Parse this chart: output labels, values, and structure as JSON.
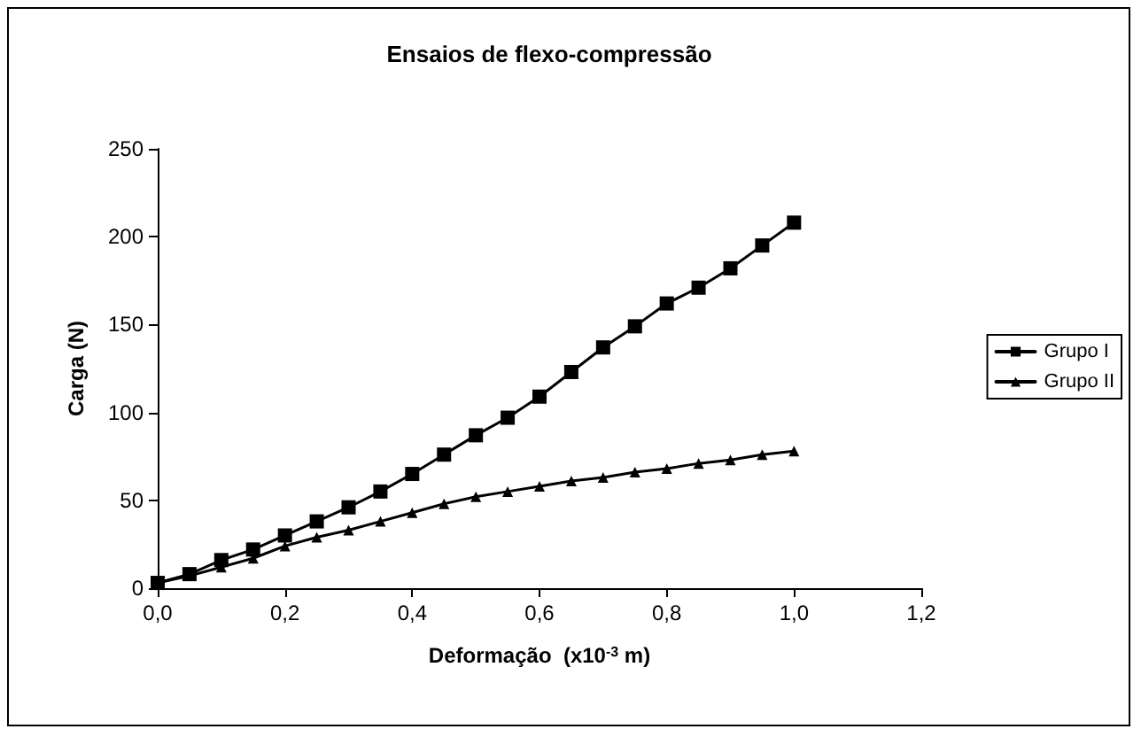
{
  "chart_data": {
    "type": "line",
    "title": "Ensaios de flexo-compressão",
    "xlabel": "Deformação  (x10$^{-3}$ m)",
    "ylabel": "Carga (N)",
    "x": [
      0,
      0.05,
      0.1,
      0.15,
      0.2,
      0.25,
      0.3,
      0.35,
      0.4,
      0.45,
      0.5,
      0.55,
      0.6,
      0.65,
      0.7,
      0.75,
      0.8,
      0.85,
      0.9,
      0.95,
      1.0
    ],
    "series": [
      {
        "name": "Grupo I",
        "color": "#000000",
        "marker": "square",
        "values": [
          3,
          8,
          16,
          22,
          30,
          38,
          46,
          55,
          65,
          76,
          87,
          97,
          109,
          123,
          137,
          149,
          162,
          171,
          182,
          195,
          208
        ]
      },
      {
        "name": "Grupo II",
        "color": "#000000",
        "marker": "triangle",
        "values": [
          3,
          7,
          12,
          17,
          24,
          29,
          33,
          38,
          43,
          48,
          52,
          55,
          58,
          61,
          63,
          66,
          68,
          71,
          73,
          76,
          78
        ]
      }
    ],
    "xlim": [
      0,
      1.2
    ],
    "xticks": [
      {
        "value": 0,
        "label": "0,0"
      },
      {
        "value": 0.2,
        "label": "0,2"
      },
      {
        "value": 0.4,
        "label": "0,4"
      },
      {
        "value": 0.6,
        "label": "0,6"
      },
      {
        "value": 0.8,
        "label": "0,8"
      },
      {
        "value": 1.0,
        "label": "1,0"
      },
      {
        "value": 1.2,
        "label": "1,2"
      }
    ],
    "ylim": [
      0,
      250
    ],
    "yticks": [
      0,
      50,
      100,
      150,
      200,
      250
    ],
    "grid": false,
    "legend": "right",
    "line_style": "solid"
  }
}
